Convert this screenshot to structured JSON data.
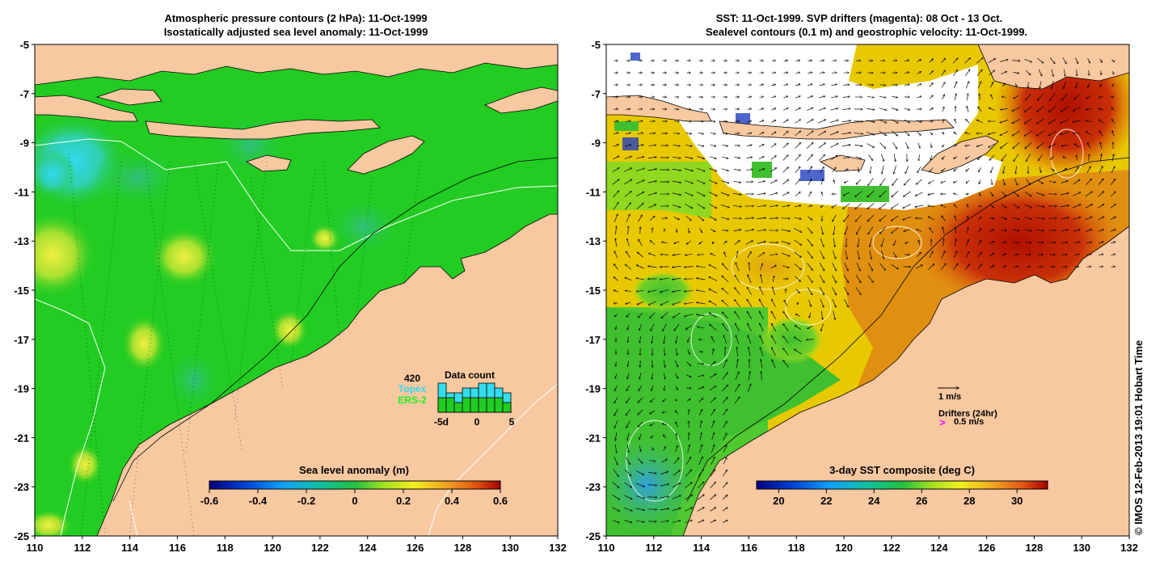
{
  "left_panel": {
    "title_line1": "Atmospheric pressure contours (2 hPa): 11-Oct-1999",
    "title_line2": "Isostatically adjusted sea level anomaly: 11-Oct-1999",
    "x_ticks": [
      "110",
      "112",
      "114",
      "116",
      "118",
      "120",
      "122",
      "124",
      "126",
      "128",
      "130",
      "132"
    ],
    "y_ticks": [
      "-5",
      "-7",
      "-9",
      "-11",
      "-13",
      "-15",
      "-17",
      "-19",
      "-21",
      "-23",
      "-25"
    ],
    "colorbar_label": "Sea level anomaly (m)",
    "colorbar_ticks": [
      "-0.6",
      "-0.4",
      "-0.2",
      "0",
      "0.2",
      "0.4",
      "0.6"
    ],
    "data_count": {
      "title": "Data count",
      "total": "420",
      "topex_label": "Topex",
      "ers2_label": "ERS-2",
      "x_ticks": [
        "-5d",
        "0",
        "5"
      ],
      "topex_color": "#33ddee",
      "ers2_color": "#22cc22",
      "topex_counts": [
        6,
        4,
        4,
        5,
        5,
        6,
        6,
        5,
        4
      ],
      "ers2_counts": [
        3,
        3,
        2,
        3,
        3,
        3,
        3,
        3,
        2
      ]
    }
  },
  "right_panel": {
    "title_line1": "SST: 11-Oct-1999. SVP drifters (magenta): 08 Oct - 13 Oct.",
    "title_line2": "Sealevel contours (0.1 m) and geostrophic velocity: 11-Oct-1999.",
    "x_ticks": [
      "110",
      "112",
      "114",
      "116",
      "118",
      "120",
      "122",
      "124",
      "126",
      "128",
      "130",
      "132"
    ],
    "y_ticks": [
      "-5",
      "-7",
      "-9",
      "-11",
      "-13",
      "-15",
      "-17",
      "-19",
      "-21",
      "-23",
      "-25"
    ],
    "colorbar_label": "3-day SST composite (deg C)",
    "colorbar_ticks": [
      "20",
      "22",
      "24",
      "26",
      "28",
      "30"
    ],
    "velocity_scale_label": "1 m/s",
    "drifters_label": "Drifters (24hr)",
    "drifter_scale_label": "0.5 m/s",
    "drifter_color": "#ff00ff"
  },
  "credit": "© IMOS 12-Feb-2013 19:01 Hobart Time",
  "colors": {
    "land": "#f8c8a0",
    "sla_background": "#22cc22",
    "sst_background": "#e8c800"
  }
}
